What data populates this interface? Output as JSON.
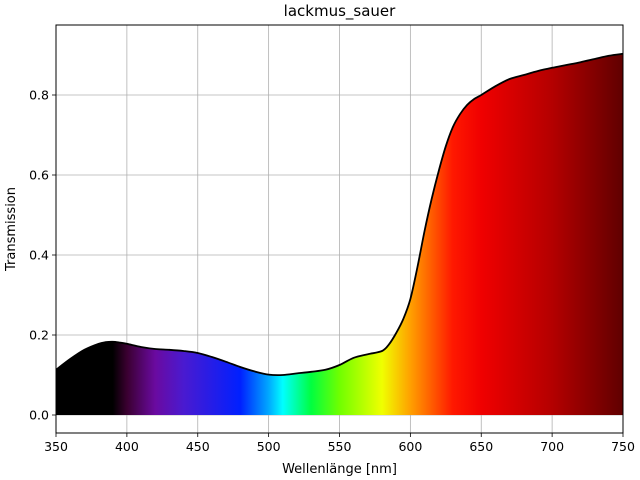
{
  "chart_data": {
    "type": "area",
    "title": "lackmus_sauer",
    "xlabel": "Wellenlänge [nm]",
    "ylabel": "Transmission",
    "xlim": [
      350,
      750
    ],
    "ylim": [
      -0.045,
      0.975
    ],
    "xticks": [
      350,
      400,
      450,
      500,
      550,
      600,
      650,
      700,
      750
    ],
    "xtick_labels": [
      "350",
      "400",
      "450",
      "500",
      "550",
      "600",
      "650",
      "700",
      "750"
    ],
    "yticks": [
      0.0,
      0.2,
      0.4,
      0.6,
      0.8
    ],
    "ytick_labels": [
      "0.0",
      "0.2",
      "0.4",
      "0.6",
      "0.8"
    ],
    "grid": true,
    "fill": "visible-spectrum gradient under curve",
    "line_color": "#000000",
    "series": [
      {
        "x": [
          350,
          360,
          370,
          380,
          385,
          390,
          395,
          400,
          410,
          420,
          430,
          440,
          450,
          460,
          470,
          480,
          490,
          500,
          510,
          520,
          530,
          540,
          550,
          560,
          570,
          580,
          585,
          590,
          595,
          600,
          605,
          610,
          615,
          620,
          625,
          630,
          635,
          640,
          645,
          650,
          660,
          670,
          680,
          690,
          700,
          710,
          720,
          730,
          740,
          750
        ],
        "y": [
          0.113,
          0.14,
          0.163,
          0.178,
          0.182,
          0.183,
          0.181,
          0.178,
          0.17,
          0.165,
          0.163,
          0.16,
          0.155,
          0.145,
          0.133,
          0.12,
          0.109,
          0.101,
          0.1,
          0.104,
          0.108,
          0.113,
          0.125,
          0.143,
          0.152,
          0.16,
          0.177,
          0.205,
          0.24,
          0.29,
          0.37,
          0.46,
          0.54,
          0.61,
          0.672,
          0.72,
          0.752,
          0.775,
          0.79,
          0.8,
          0.822,
          0.84,
          0.85,
          0.86,
          0.868,
          0.875,
          0.882,
          0.89,
          0.898,
          0.903
        ]
      }
    ]
  }
}
